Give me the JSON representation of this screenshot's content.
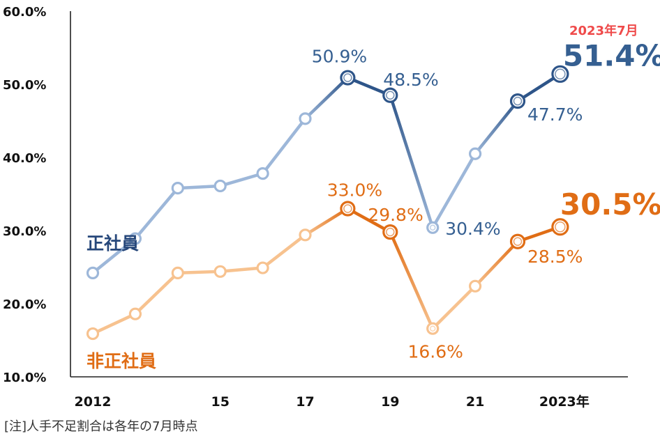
{
  "chart_data": {
    "type": "line",
    "x": [
      2012,
      2013,
      2014,
      2015,
      2016,
      2017,
      2018,
      2019,
      2020,
      2021,
      2022,
      2023
    ],
    "x_tick_labels": [
      {
        "x": 2012,
        "label": "2012"
      },
      {
        "x": 2015,
        "label": "15"
      },
      {
        "x": 2017,
        "label": "17"
      },
      {
        "x": 2019,
        "label": "19"
      },
      {
        "x": 2021,
        "label": "21"
      },
      {
        "x": 2023,
        "label": "2023年"
      }
    ],
    "y_tick_labels": [
      "10.0%",
      "20.0%",
      "30.0%",
      "40.0%",
      "50.0%",
      "60.0%"
    ],
    "y_ticks": [
      10,
      20,
      30,
      40,
      50,
      60
    ],
    "ylim": [
      10,
      60
    ],
    "grid": false,
    "series": [
      {
        "name": "正社員",
        "values": [
          24.2,
          28.9,
          35.8,
          36.1,
          37.8,
          45.3,
          50.9,
          48.5,
          30.4,
          40.5,
          47.7,
          51.4
        ],
        "color_light": "#9db7d9",
        "color_dark": "#2e5589",
        "label_color": "#355f91",
        "data_labels": [
          {
            "x": 2018,
            "text": "50.9%"
          },
          {
            "x": 2019,
            "text": "48.5%"
          },
          {
            "x": 2020,
            "text": "30.4%"
          },
          {
            "x": 2022,
            "text": "47.7%"
          },
          {
            "x": 2023,
            "text": "51.4%",
            "big": true
          }
        ]
      },
      {
        "name": "非正社員",
        "values": [
          15.9,
          18.6,
          24.2,
          24.4,
          24.9,
          29.4,
          33.0,
          29.8,
          16.6,
          22.4,
          28.5,
          30.5
        ],
        "color_light": "#f7c28f",
        "color_dark": "#e06d15",
        "label_color": "#e06d15",
        "data_labels": [
          {
            "x": 2018,
            "text": "33.0%"
          },
          {
            "x": 2019,
            "text": "29.8%"
          },
          {
            "x": 2020,
            "text": "16.6%"
          },
          {
            "x": 2022,
            "text": "28.5%"
          },
          {
            "x": 2023,
            "text": "30.5%",
            "big": true
          }
        ]
      }
    ],
    "annotation": {
      "text": "2023年7月",
      "color": "#ef4a4a"
    },
    "note": "[注]人手不足割合は各年の7月時点"
  }
}
